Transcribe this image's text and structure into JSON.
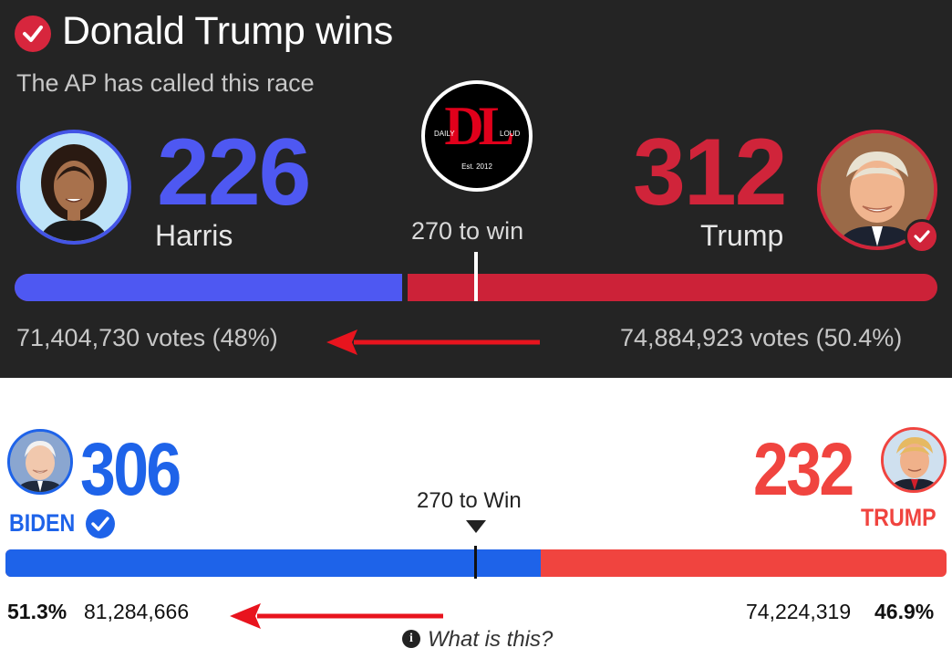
{
  "top_panel": {
    "headline": "Donald Trump wins",
    "subline": "The AP has called this race",
    "threshold_label": "270 to win",
    "logo": {
      "main": "DL",
      "left": "DAILY",
      "right": "LOUD",
      "est": "Est. 2012"
    },
    "harris": {
      "ev": "226",
      "name": "Harris",
      "votes": "71,404,730 votes (48%)",
      "bar_share": 0.42
    },
    "trump": {
      "ev": "312",
      "name": "Trump",
      "votes": "74,884,923 votes (50.4%)"
    },
    "colors": {
      "background": "#242424",
      "blue": "#4e58f2",
      "red": "#d0243a"
    }
  },
  "bottom_panel": {
    "threshold_label": "270 to Win",
    "info_link": "What is this?",
    "biden": {
      "ev": "306",
      "name": "BIDEN",
      "pct": "51.3%",
      "votes": "81,284,666",
      "bar_share": 0.569
    },
    "trump": {
      "ev": "232",
      "name": "TRUMP",
      "pct": "46.9%",
      "votes": "74,224,319"
    },
    "colors": {
      "blue": "#1e63e9",
      "red": "#f0443f"
    }
  },
  "annotations": {
    "arrow_color": "#e8141e"
  }
}
